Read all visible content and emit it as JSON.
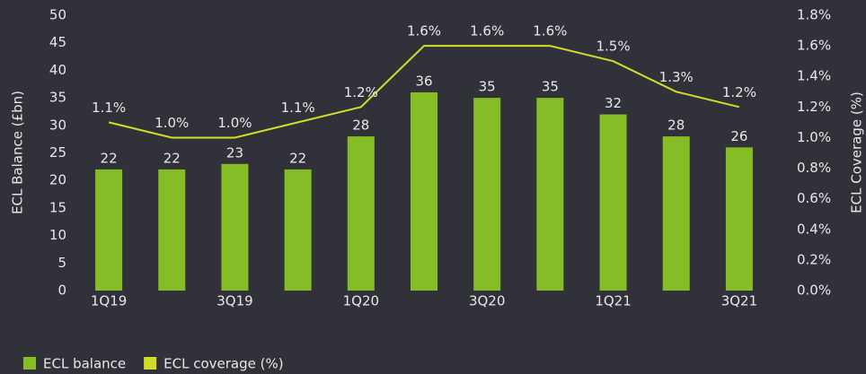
{
  "chart_data": {
    "type": "bar",
    "categories": [
      "1Q19",
      null,
      "3Q19",
      null,
      "1Q20",
      null,
      "3Q20",
      null,
      "1Q21",
      null,
      "3Q21"
    ],
    "series": [
      {
        "name": "ECL balance",
        "color": "#86bc25",
        "type": "bar",
        "values": [
          22,
          22,
          23,
          22,
          28,
          36,
          35,
          35,
          32,
          28,
          26
        ]
      },
      {
        "name": "ECL coverage (%)",
        "color": "#d4dc2a",
        "type": "line",
        "axis": "y2",
        "values": [
          1.1,
          1.0,
          1.0,
          1.1,
          1.2,
          1.6,
          1.6,
          1.6,
          1.5,
          1.3,
          1.2
        ],
        "value_labels": [
          "1.1%",
          "1.0%",
          "1.0%",
          "1.1%",
          "1.2%",
          "1.6%",
          "1.6%",
          "1.6%",
          "1.5%",
          "1.3%",
          "1.2%"
        ]
      }
    ],
    "y_label": "ECL Balance (£bn)",
    "y2_label": "ECL Coverage (%)",
    "ylim": [
      0,
      50
    ],
    "yticks": [
      0,
      5,
      10,
      15,
      20,
      25,
      30,
      35,
      40,
      45,
      50
    ],
    "y2lim": [
      0,
      1.8
    ],
    "y2ticks": [
      {
        "value": 0,
        "label": "0.0%"
      },
      {
        "value": 0.2,
        "label": "0.2%"
      },
      {
        "value": 0.4,
        "label": "0.4%"
      },
      {
        "value": 0.6,
        "label": "0.6%"
      },
      {
        "value": 0.8,
        "label": "0.8%"
      },
      {
        "value": 1.0,
        "label": "1.0%"
      },
      {
        "value": 1.2,
        "label": "1.2%"
      },
      {
        "value": 1.4,
        "label": "1.4%"
      },
      {
        "value": 1.6,
        "label": "1.6%"
      },
      {
        "value": 1.8,
        "label": "1.8%"
      }
    ],
    "legend": "bottom-left"
  }
}
